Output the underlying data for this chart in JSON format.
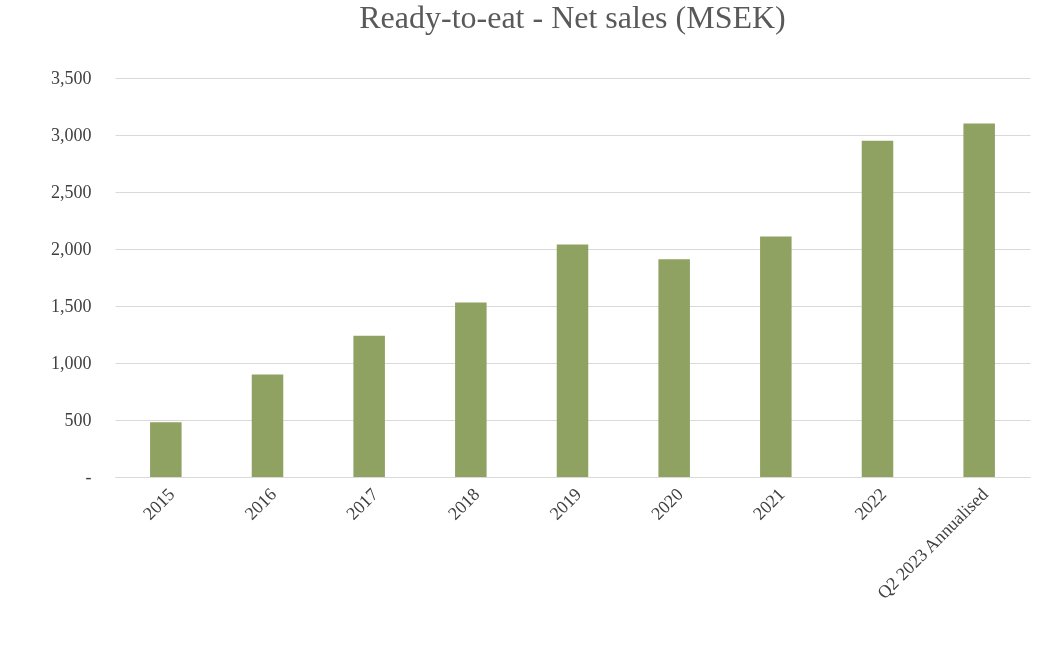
{
  "chart_data": {
    "type": "bar",
    "title": "Ready-to-eat - Net sales (MSEK)",
    "categories": [
      "2015",
      "2016",
      "2017",
      "2018",
      "2019",
      "2020",
      "2021",
      "2022",
      "Q2 2023 Annualised"
    ],
    "values": [
      480,
      900,
      1240,
      1530,
      2040,
      1910,
      2110,
      2950,
      3100
    ],
    "color": "#8fa262",
    "ylim": [
      0,
      3500
    ],
    "yticks": [
      {
        "value": 0,
        "label": "-"
      },
      {
        "value": 500,
        "label": "500"
      },
      {
        "value": 1000,
        "label": "1,000"
      },
      {
        "value": 1500,
        "label": "1,500"
      },
      {
        "value": 2000,
        "label": "2,000"
      },
      {
        "value": 2500,
        "label": "2,500"
      },
      {
        "value": 3000,
        "label": "3,000"
      },
      {
        "value": 3500,
        "label": "3,500"
      }
    ],
    "grid": "y"
  }
}
